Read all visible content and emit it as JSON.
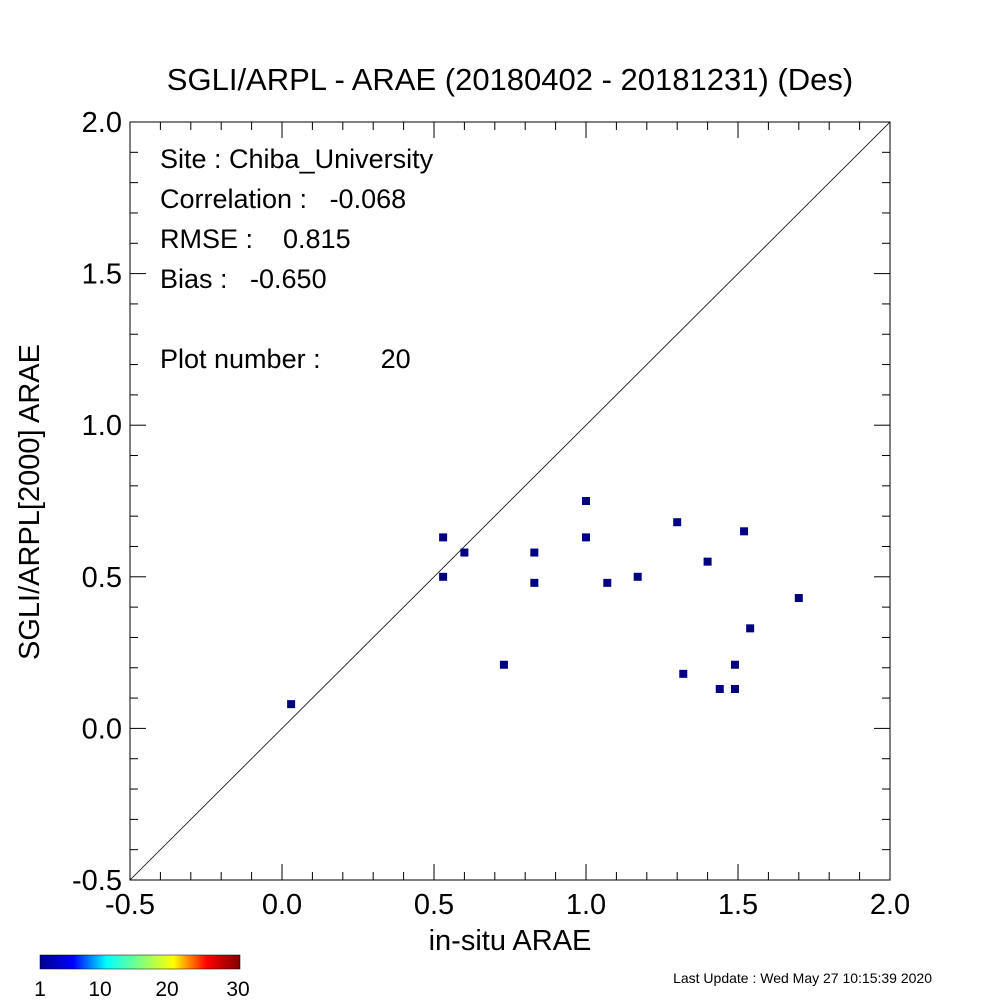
{
  "chart_data": {
    "type": "scatter",
    "title": "SGLI/ARPL - ARAE (20180402 - 20181231) (Des)",
    "xlabel": "in-situ ARAE",
    "ylabel": "SGLI/ARPL[2000]    ARAE",
    "xlim": [
      -0.5,
      2.0
    ],
    "ylim": [
      -0.5,
      2.0
    ],
    "x_ticks": [
      "-0.5",
      "0.0",
      "0.5",
      "1.0",
      "1.5",
      "2.0"
    ],
    "y_ticks": [
      "-0.5",
      "0.0",
      "0.5",
      "1.0",
      "1.5",
      "2.0"
    ],
    "one_to_one_line": true,
    "grid": false,
    "marker_color": "#000080",
    "points": [
      {
        "x": 0.03,
        "y": 0.08
      },
      {
        "x": 0.53,
        "y": 0.63
      },
      {
        "x": 0.53,
        "y": 0.5
      },
      {
        "x": 0.6,
        "y": 0.58
      },
      {
        "x": 0.73,
        "y": 0.21
      },
      {
        "x": 0.83,
        "y": 0.58
      },
      {
        "x": 0.83,
        "y": 0.48
      },
      {
        "x": 1.0,
        "y": 0.75
      },
      {
        "x": 1.0,
        "y": 0.63
      },
      {
        "x": 1.07,
        "y": 0.48
      },
      {
        "x": 1.17,
        "y": 0.5
      },
      {
        "x": 1.3,
        "y": 0.68
      },
      {
        "x": 1.32,
        "y": 0.18
      },
      {
        "x": 1.4,
        "y": 0.55
      },
      {
        "x": 1.44,
        "y": 0.13
      },
      {
        "x": 1.49,
        "y": 0.21
      },
      {
        "x": 1.49,
        "y": 0.13
      },
      {
        "x": 1.52,
        "y": 0.65
      },
      {
        "x": 1.54,
        "y": 0.33
      },
      {
        "x": 1.7,
        "y": 0.43
      }
    ],
    "stats": [
      {
        "label": "Site : Chiba_University"
      },
      {
        "label": "Correlation :   -0.068"
      },
      {
        "label": "RMSE :    0.815"
      },
      {
        "label": "Bias :   -0.650"
      },
      {
        "label": "Plot number :        20"
      }
    ],
    "colorbar": {
      "ticks": [
        "1",
        "10",
        "20",
        "30"
      ],
      "colors": [
        "#00008f",
        "#0000ff",
        "#00ffff",
        "#80ff80",
        "#ffff00",
        "#ff0000",
        "#800000"
      ]
    },
    "footer": "Last Update : Wed May 27 10:15:39 2020"
  }
}
